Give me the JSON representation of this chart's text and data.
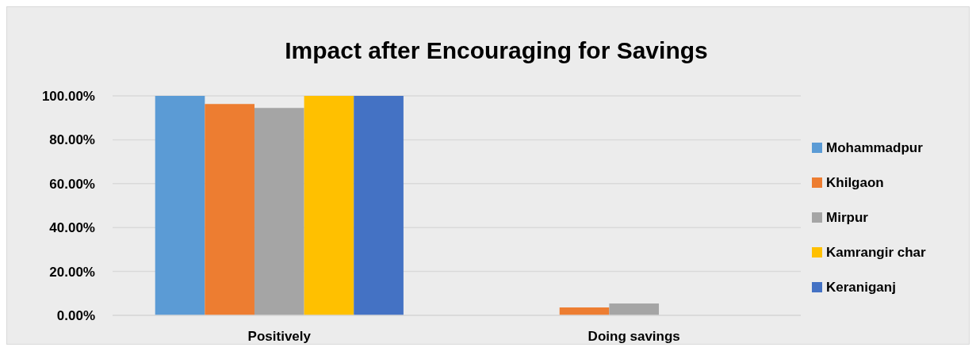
{
  "chart_data": {
    "type": "bar",
    "title": "Impact after Encouraging for Savings",
    "categories": [
      "Positively",
      "Doing savings"
    ],
    "series": [
      {
        "name": "Mohammadpur",
        "color": "#5b9bd5",
        "values": [
          100,
          0
        ]
      },
      {
        "name": "Khilgaon",
        "color": "#ed7d31",
        "values": [
          96.3,
          3.6
        ]
      },
      {
        "name": "Mirpur",
        "color": "#a5a5a5",
        "values": [
          94.5,
          5.4
        ]
      },
      {
        "name": "Kamrangir char",
        "color": "#ffc000",
        "values": [
          100,
          0
        ]
      },
      {
        "name": "Keraniganj",
        "color": "#4472c4",
        "values": [
          100,
          0
        ]
      }
    ],
    "ylim": [
      0,
      100
    ],
    "yticks": [
      {
        "value": 0,
        "label": "0.00%"
      },
      {
        "value": 20,
        "label": "20.00%"
      },
      {
        "value": 40,
        "label": "40.00%"
      },
      {
        "value": 60,
        "label": "60.00%"
      },
      {
        "value": 80,
        "label": "80.00%"
      },
      {
        "value": 100,
        "label": "100.00%"
      }
    ],
    "grid": "y",
    "legend": "right"
  }
}
